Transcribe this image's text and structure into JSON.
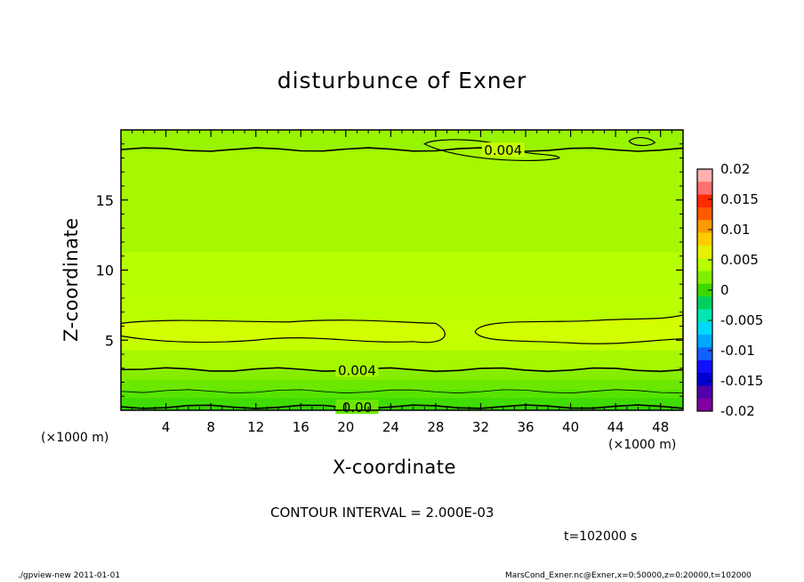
{
  "chart_data": {
    "type": "heatmap",
    "title": "disturbunce of Exner",
    "xlabel": "X-coordinate",
    "ylabel": "Z-coordinate",
    "x_unit_left": "(×1000 m)",
    "x_unit_right": "(×1000 m)",
    "xlim": [
      0,
      50
    ],
    "ylim": [
      0,
      20
    ],
    "x_ticks": [
      4,
      8,
      12,
      16,
      20,
      24,
      28,
      32,
      36,
      40,
      44,
      48
    ],
    "y_ticks": [
      5,
      10,
      15
    ],
    "colorbar": {
      "ticks": [
        "0.02",
        "0.015",
        "0.01",
        "0.005",
        "0",
        "-0.005",
        "-0.01",
        "-0.015",
        "-0.02"
      ],
      "range": [
        -0.02,
        0.02
      ],
      "colors_top_to_bottom": [
        "#ffb0b0",
        "#ff7070",
        "#ff2a00",
        "#ff5a00",
        "#ff9a00",
        "#ffcc00",
        "#e6f000",
        "#b8ff00",
        "#80f000",
        "#3ed800",
        "#00d060",
        "#00e8b0",
        "#00d8ff",
        "#00a8ff",
        "#1460ff",
        "#1010ff",
        "#0000d0",
        "#5000a8",
        "#7f00a0"
      ]
    },
    "field_bands": [
      {
        "z_range": [
          0,
          0.3
        ],
        "value": 0.0,
        "color": "#2fd400"
      },
      {
        "z_range": [
          0.3,
          0.9
        ],
        "value": 0.001,
        "color": "#40dc00"
      },
      {
        "z_range": [
          0.9,
          1.5
        ],
        "value": 0.002,
        "color": "#55e400"
      },
      {
        "z_range": [
          1.5,
          2.2
        ],
        "value": 0.003,
        "color": "#6ce800"
      },
      {
        "z_range": [
          2.2,
          2.9
        ],
        "value": 0.0035,
        "color": "#86ec00"
      },
      {
        "z_range": [
          2.9,
          4.3
        ],
        "value": 0.0045,
        "color": "#a6f800"
      },
      {
        "z_range": [
          4.3,
          6.4
        ],
        "value": 0.0055,
        "color": "#c4ff00"
      },
      {
        "z_range": [
          6.4,
          8.5
        ],
        "value": 0.005,
        "color": "#baff00"
      },
      {
        "z_range": [
          8.5,
          11.3
        ],
        "value": 0.0052,
        "color": "#b6ff00"
      },
      {
        "z_range": [
          11.3,
          18.5
        ],
        "value": 0.0045,
        "color": "#a6f800"
      },
      {
        "z_range": [
          18.5,
          20
        ],
        "value": 0.004,
        "color": "#98f400"
      }
    ],
    "contours": [
      {
        "label": "0.00",
        "z": 0.25
      },
      {
        "label": "",
        "z": 1.35
      },
      {
        "label": "0.004",
        "z": 2.9
      },
      {
        "label": "0.004",
        "z": 18.6
      }
    ],
    "contour_interval_text": "CONTOUR INTERVAL = 2.000E-03"
  },
  "annotations": {
    "time": "t=102000 s",
    "footer_left": "./gpview-new  2011-01-01",
    "footer_right": "MarsCond_Exner.nc@Exner,x=0:50000,z=0:20000,t=102000"
  }
}
